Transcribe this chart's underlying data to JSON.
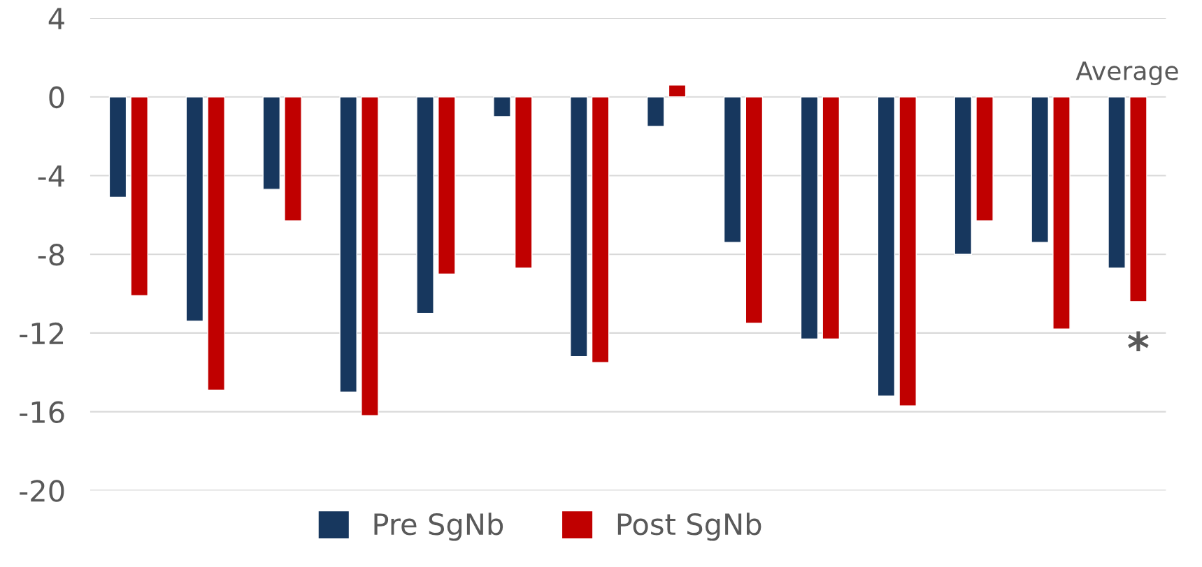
{
  "chart_data": {
    "type": "bar",
    "categories": [
      null,
      null,
      null,
      null,
      null,
      null,
      null,
      null,
      null,
      null,
      null,
      null,
      null,
      "Average"
    ],
    "series": [
      {
        "name": "Pre SgNb",
        "color": "#17375e",
        "values": [
          -5.1,
          -11.4,
          -4.7,
          -15.0,
          -11.0,
          -1.0,
          -13.2,
          -1.5,
          -7.4,
          -12.3,
          -15.2,
          -8.0,
          -7.4,
          -8.7
        ]
      },
      {
        "name": "Post SgNb",
        "color": "#c00000",
        "values": [
          -10.1,
          -14.9,
          -6.3,
          -16.2,
          -9.0,
          -8.7,
          -13.5,
          0.6,
          -11.5,
          -12.3,
          -15.7,
          -6.3,
          -11.8,
          -10.4
        ]
      }
    ],
    "ylim": [
      -20,
      4
    ],
    "yticks": [
      -20,
      -16,
      -12,
      -8,
      -4,
      0,
      4
    ],
    "grid": "y",
    "legend": "bottom",
    "annotations": [
      "*"
    ]
  }
}
